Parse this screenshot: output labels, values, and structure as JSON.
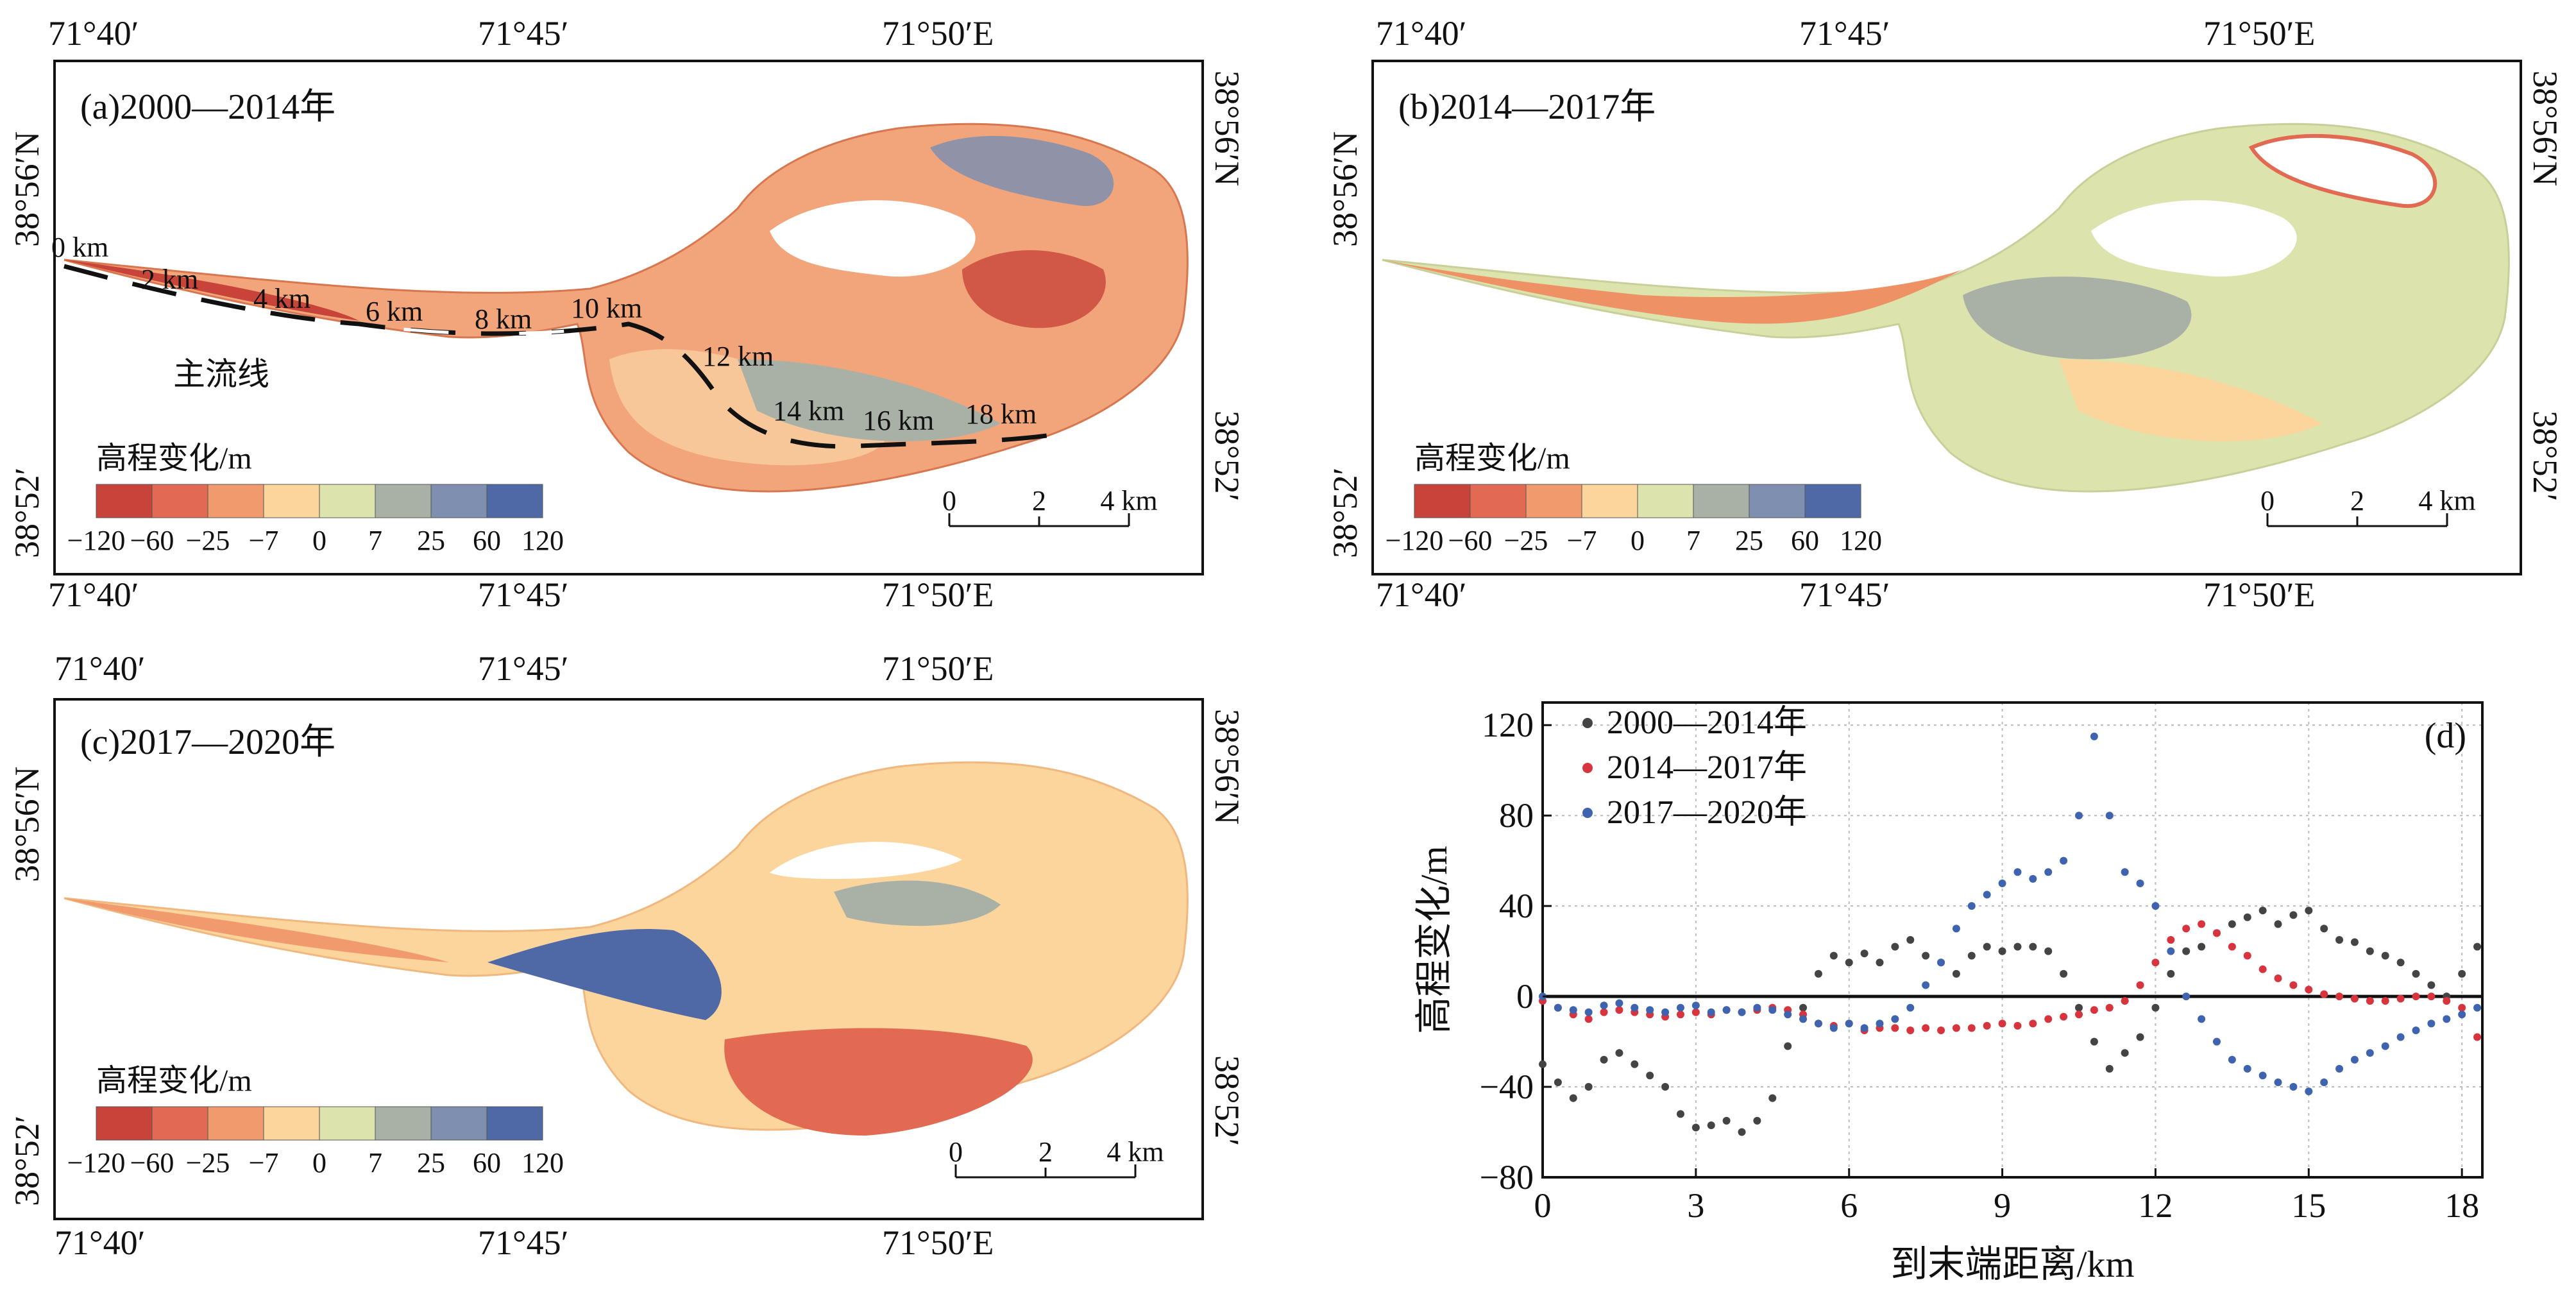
{
  "maps": [
    {
      "id": "a",
      "label": "(a)2000—2014年",
      "top_lon": [
        "71°40′",
        "71°45′",
        "71°50′E"
      ],
      "bottom_lon": [
        "71°40′",
        "71°45′",
        "71°50′E"
      ],
      "left_lat": [
        "38°56′N",
        "38°52′"
      ],
      "right_lat": [
        "38°56′N",
        "38°52′"
      ],
      "legend_title": "高程变化/m",
      "legend_ticks": [
        "−120",
        "−60",
        "−25",
        "−7",
        "0",
        "7",
        "25",
        "60",
        "120"
      ],
      "scale_ticks": [
        "0",
        "2",
        "4 km"
      ],
      "flowline_label": "主流线",
      "distance_labels": [
        "0 km",
        "2 km",
        "4 km",
        "6 km",
        "8 km",
        "10 km",
        "12 km",
        "14 km",
        "16 km",
        "18 km"
      ]
    },
    {
      "id": "b",
      "label": "(b)2014—2017年",
      "top_lon": [
        "71°40′",
        "71°45′",
        "71°50′E"
      ],
      "bottom_lon": [
        "71°40′",
        "71°45′",
        "71°50′E"
      ],
      "left_lat": [
        "38°56′N",
        "38°52′"
      ],
      "right_lat": [
        "38°56′N",
        "38°52′"
      ],
      "legend_title": "高程变化/m",
      "legend_ticks": [
        "−120",
        "−60",
        "−25",
        "−7",
        "0",
        "7",
        "25",
        "60",
        "120"
      ],
      "scale_ticks": [
        "0",
        "2",
        "4 km"
      ]
    },
    {
      "id": "c",
      "label": "(c)2017—2020年",
      "top_lon": [
        "71°40′",
        "71°45′",
        "71°50′E"
      ],
      "bottom_lon": [
        "71°40′",
        "71°45′",
        "71°50′E"
      ],
      "left_lat": [
        "38°56′N",
        "38°52′"
      ],
      "right_lat": [
        "38°56′N",
        "38°52′"
      ],
      "legend_title": "高程变化/m",
      "legend_ticks": [
        "−120",
        "−60",
        "−25",
        "−7",
        "0",
        "7",
        "25",
        "60",
        "120"
      ],
      "scale_ticks": [
        "0",
        "2",
        "4 km"
      ]
    }
  ],
  "colors": {
    "ramp": [
      "#c8443a",
      "#e26a52",
      "#f09a6e",
      "#fbd59c",
      "#dde3ad",
      "#a9b1a6",
      "#7f8fb0",
      "#4f68a6"
    ],
    "series_2000_2014": "#444444",
    "series_2014_2017": "#d8343d",
    "series_2017_2020": "#3e64b0"
  },
  "chart_data": {
    "type": "scatter",
    "panel_label": "(d)",
    "xlabel": "到末端距离/km",
    "ylabel": "高程变化/m",
    "xlim": [
      0,
      18.4
    ],
    "ylim": [
      -80,
      130
    ],
    "xticks": [
      0,
      3,
      6,
      9,
      12,
      15,
      18
    ],
    "yticks": [
      -80,
      -40,
      0,
      40,
      80,
      120
    ],
    "grid": true,
    "legend_position": "top-left",
    "series": [
      {
        "name": "2000—2014年",
        "x": [
          0,
          0.3,
          0.6,
          0.9,
          1.2,
          1.5,
          1.8,
          2.1,
          2.4,
          2.7,
          3.0,
          3.3,
          3.6,
          3.9,
          4.2,
          4.5,
          4.8,
          5.1,
          5.4,
          5.7,
          6.0,
          6.3,
          6.6,
          6.9,
          7.2,
          7.5,
          7.8,
          8.1,
          8.4,
          8.7,
          9.0,
          9.3,
          9.6,
          9.9,
          10.2,
          10.5,
          10.8,
          11.1,
          11.4,
          11.7,
          12.0,
          12.3,
          12.6,
          12.9,
          13.2,
          13.5,
          13.8,
          14.1,
          14.4,
          14.7,
          15.0,
          15.3,
          15.6,
          15.9,
          16.2,
          16.5,
          16.8,
          17.1,
          17.4,
          17.7,
          18.0,
          18.3
        ],
        "y": [
          -30,
          -38,
          -45,
          -40,
          -28,
          -25,
          -30,
          -35,
          -40,
          -52,
          -58,
          -57,
          -55,
          -60,
          -55,
          -45,
          -22,
          -5,
          10,
          18,
          15,
          19,
          15,
          22,
          25,
          18,
          15,
          10,
          18,
          22,
          20,
          22,
          22,
          20,
          10,
          -5,
          -20,
          -32,
          -25,
          -18,
          -5,
          10,
          20,
          22,
          28,
          32,
          35,
          38,
          32,
          36,
          38,
          30,
          25,
          24,
          20,
          18,
          15,
          10,
          5,
          0,
          10,
          22
        ]
      },
      {
        "name": "2014—2017年",
        "x": [
          0,
          0.3,
          0.6,
          0.9,
          1.2,
          1.5,
          1.8,
          2.1,
          2.4,
          2.7,
          3.0,
          3.3,
          3.6,
          3.9,
          4.2,
          4.5,
          4.8,
          5.1,
          5.4,
          5.7,
          6.0,
          6.3,
          6.6,
          6.9,
          7.2,
          7.5,
          7.8,
          8.1,
          8.4,
          8.7,
          9.0,
          9.3,
          9.6,
          9.9,
          10.2,
          10.5,
          10.8,
          11.1,
          11.4,
          11.7,
          12.0,
          12.3,
          12.6,
          12.9,
          13.2,
          13.5,
          13.8,
          14.1,
          14.4,
          14.7,
          15.0,
          15.3,
          15.6,
          15.9,
          16.2,
          16.5,
          16.8,
          17.1,
          17.4,
          17.7,
          18.0,
          18.3
        ],
        "y": [
          -2,
          -5,
          -8,
          -10,
          -7,
          -6,
          -7,
          -8,
          -9,
          -8,
          -7,
          -8,
          -6,
          -7,
          -6,
          -5,
          -6,
          -8,
          -12,
          -13,
          -12,
          -15,
          -14,
          -14,
          -15,
          -14,
          -15,
          -14,
          -14,
          -13,
          -12,
          -13,
          -12,
          -10,
          -9,
          -8,
          -6,
          -5,
          -2,
          5,
          15,
          25,
          30,
          32,
          28,
          22,
          18,
          12,
          8,
          5,
          3,
          1,
          0,
          -1,
          -2,
          -2,
          -1,
          0,
          0,
          -2,
          -5,
          -18
        ]
      },
      {
        "name": "2017—2020年",
        "x": [
          0,
          0.3,
          0.6,
          0.9,
          1.2,
          1.5,
          1.8,
          2.1,
          2.4,
          2.7,
          3.0,
          3.3,
          3.6,
          3.9,
          4.2,
          4.5,
          4.8,
          5.1,
          5.4,
          5.7,
          6.0,
          6.3,
          6.6,
          6.9,
          7.2,
          7.5,
          7.8,
          8.1,
          8.4,
          8.7,
          9.0,
          9.3,
          9.6,
          9.9,
          10.2,
          10.5,
          10.8,
          11.1,
          11.4,
          11.7,
          12.0,
          12.3,
          12.6,
          12.9,
          13.2,
          13.5,
          13.8,
          14.1,
          14.4,
          14.7,
          15.0,
          15.3,
          15.6,
          15.9,
          16.2,
          16.5,
          16.8,
          17.1,
          17.4,
          17.7,
          18.0,
          18.3
        ],
        "y": [
          0,
          -5,
          -6,
          -7,
          -4,
          -3,
          -5,
          -6,
          -7,
          -5,
          -4,
          -7,
          -6,
          -7,
          -5,
          -6,
          -8,
          -10,
          -12,
          -14,
          -12,
          -14,
          -12,
          -10,
          -5,
          5,
          15,
          30,
          40,
          45,
          50,
          55,
          52,
          55,
          60,
          80,
          115,
          80,
          55,
          50,
          40,
          20,
          0,
          -10,
          -20,
          -28,
          -32,
          -35,
          -38,
          -40,
          -42,
          -38,
          -32,
          -28,
          -25,
          -22,
          -18,
          -15,
          -12,
          -10,
          -8,
          -5
        ]
      }
    ]
  }
}
